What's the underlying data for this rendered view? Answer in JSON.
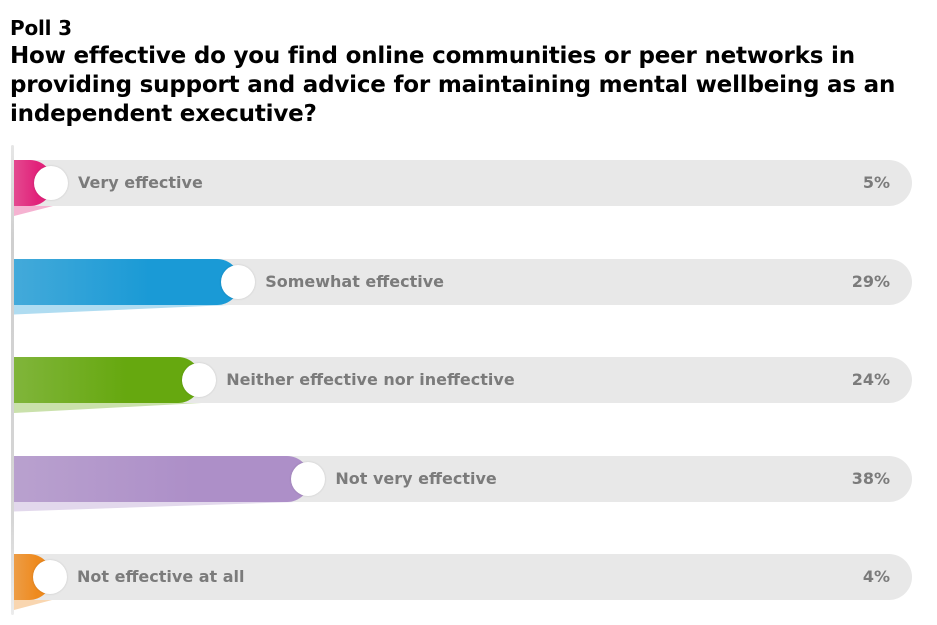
{
  "header": {
    "poll_label": "Poll 3",
    "question": "How effective do you find online communities or peer networks in providing support and advice for maintaining mental wellbeing as an independent executive?"
  },
  "chart_data": {
    "type": "bar",
    "orientation": "horizontal",
    "title": "How effective do you find online communities or peer networks in providing support and advice for maintaining mental wellbeing as an independent executive?",
    "categories": [
      "Very effective",
      "Somewhat effective",
      "Neither effective nor ineffective",
      "Not very effective",
      "Not effective at all"
    ],
    "values": [
      5,
      29,
      24,
      38,
      4
    ],
    "value_labels": [
      "5%",
      "29%",
      "24%",
      "38%",
      "4%"
    ],
    "colors": [
      "#e2227a",
      "#1a9ad6",
      "#66a80f",
      "#ad8fc8",
      "#ee8a1e"
    ],
    "xlim": [
      0,
      100
    ],
    "track_color": "#e8e8e8",
    "legend": "none",
    "grid": false
  }
}
